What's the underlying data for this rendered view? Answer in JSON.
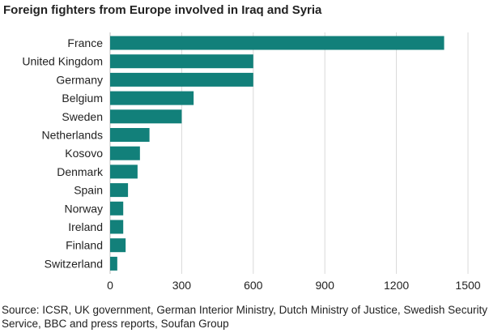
{
  "chart_data": {
    "type": "bar",
    "orientation": "horizontal",
    "title": "Foreign fighters from Europe involved in Iraq and Syria",
    "categories": [
      "France",
      "United Kingdom",
      "Germany",
      "Belgium",
      "Sweden",
      "Netherlands",
      "Kosovo",
      "Denmark",
      "Spain",
      "Norway",
      "Ireland",
      "Finland",
      "Switzerland"
    ],
    "values": [
      1400,
      600,
      600,
      350,
      300,
      165,
      125,
      115,
      75,
      55,
      55,
      65,
      30
    ],
    "xlim": [
      0,
      1500
    ],
    "xticks": [
      0,
      300,
      600,
      900,
      1200,
      1500
    ],
    "grid": "vertical",
    "bar_color": "#12807a",
    "source": "Source: ICSR, UK government, German Interior Ministry, Dutch Ministry of Justice, Swedish Security Service, BBC and press reports, Soufan Group"
  }
}
